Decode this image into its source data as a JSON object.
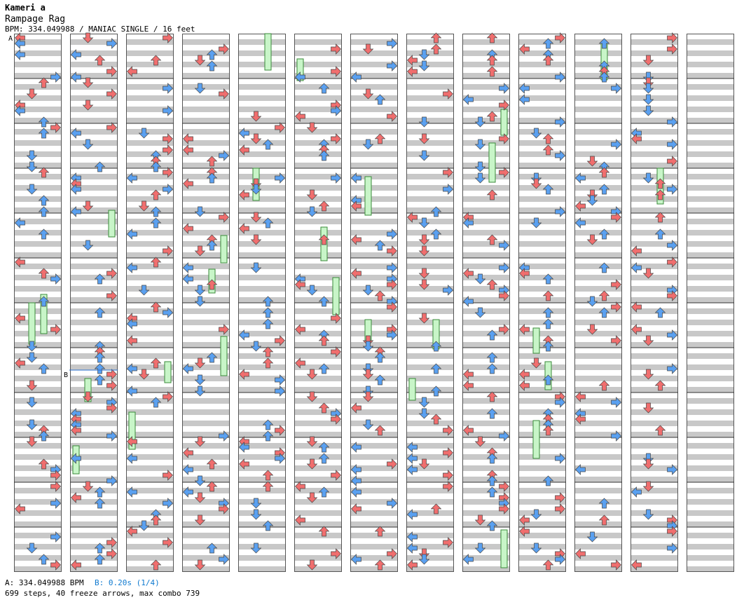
{
  "header": {
    "artist": "Kameri a",
    "title": "Rampage Rag",
    "info": "BPM: 334.049988 / MANIAC SINGLE / 16 feet"
  },
  "chart_data": {
    "type": "step-chart",
    "columns": 13,
    "measures_per_column": 6,
    "marker_labels": [
      "A",
      "B"
    ],
    "legend": {
      "bpm": "A: 334.049988 BPM",
      "stop": "B: 0.20s (1/4)"
    },
    "stats": "699 steps, 40 freeze arrows, max combo 739",
    "colors": {
      "quarter": "#f06e6e",
      "eighth": "#5aa0f0",
      "sixteenth": "#e8e048",
      "twelfth": "#f29cf0",
      "freeze": "#c8f5c8",
      "shock": "#50d850",
      "lane_gray": "#c8c8c8",
      "stop_line": "#2a6fd0"
    }
  }
}
